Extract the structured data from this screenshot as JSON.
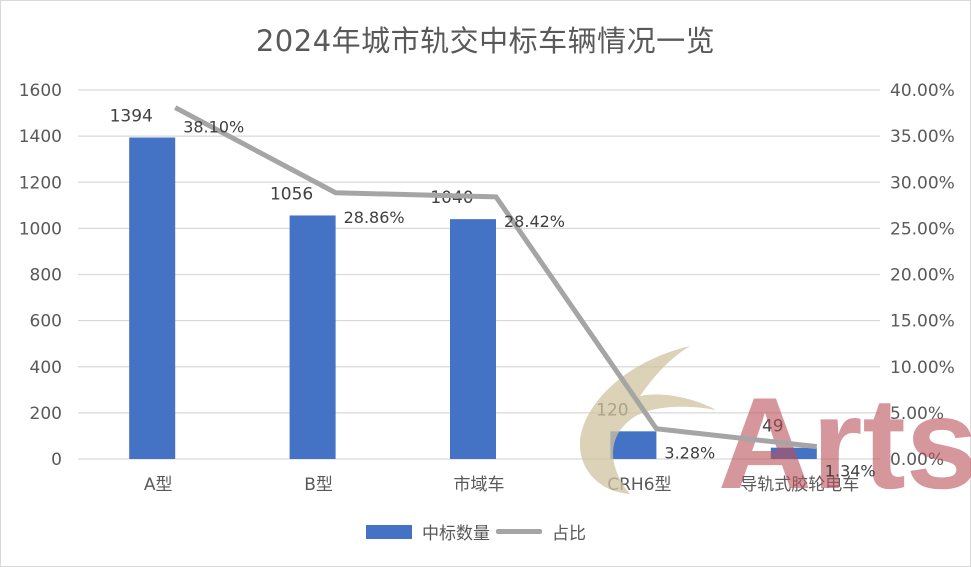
{
  "chart_data": {
    "type": "bar+line",
    "title": "2024年城市轨交中标车辆情况一览",
    "categories": [
      "A型",
      "B型",
      "市域车",
      "CRH6型",
      "导轨式胶轮电车"
    ],
    "series": [
      {
        "name": "中标数量",
        "type": "bar",
        "axis": "left",
        "color": "#4472c4",
        "values": [
          1394,
          1056,
          1040,
          120,
          49
        ],
        "labels": [
          "1394",
          "1056",
          "1040",
          "120",
          "49"
        ]
      },
      {
        "name": "占比",
        "type": "line",
        "axis": "right",
        "color": "#a5a5a5",
        "values": [
          38.1,
          28.86,
          28.42,
          3.28,
          1.34
        ],
        "labels": [
          "38.10%",
          "28.86%",
          "28.42%",
          "3.28%",
          "1.34%"
        ]
      }
    ],
    "y_left": {
      "ylim": [
        0,
        1600
      ],
      "ticks": [
        "0",
        "200",
        "400",
        "600",
        "800",
        "1000",
        "1200",
        "1400",
        "1600"
      ]
    },
    "y_right": {
      "ylim": [
        0,
        40
      ],
      "ticks": [
        "0.00%",
        "5.00%",
        "10.00%",
        "15.00%",
        "20.00%",
        "25.00%",
        "30.00%",
        "35.00%",
        "40.00%"
      ]
    },
    "xlabel": "",
    "ylabel": "",
    "grid": true,
    "legend_position": "bottom"
  },
  "legend": {
    "bar_label": "中标数量",
    "line_label": "占比"
  },
  "watermark": {
    "text": "Arts"
  }
}
